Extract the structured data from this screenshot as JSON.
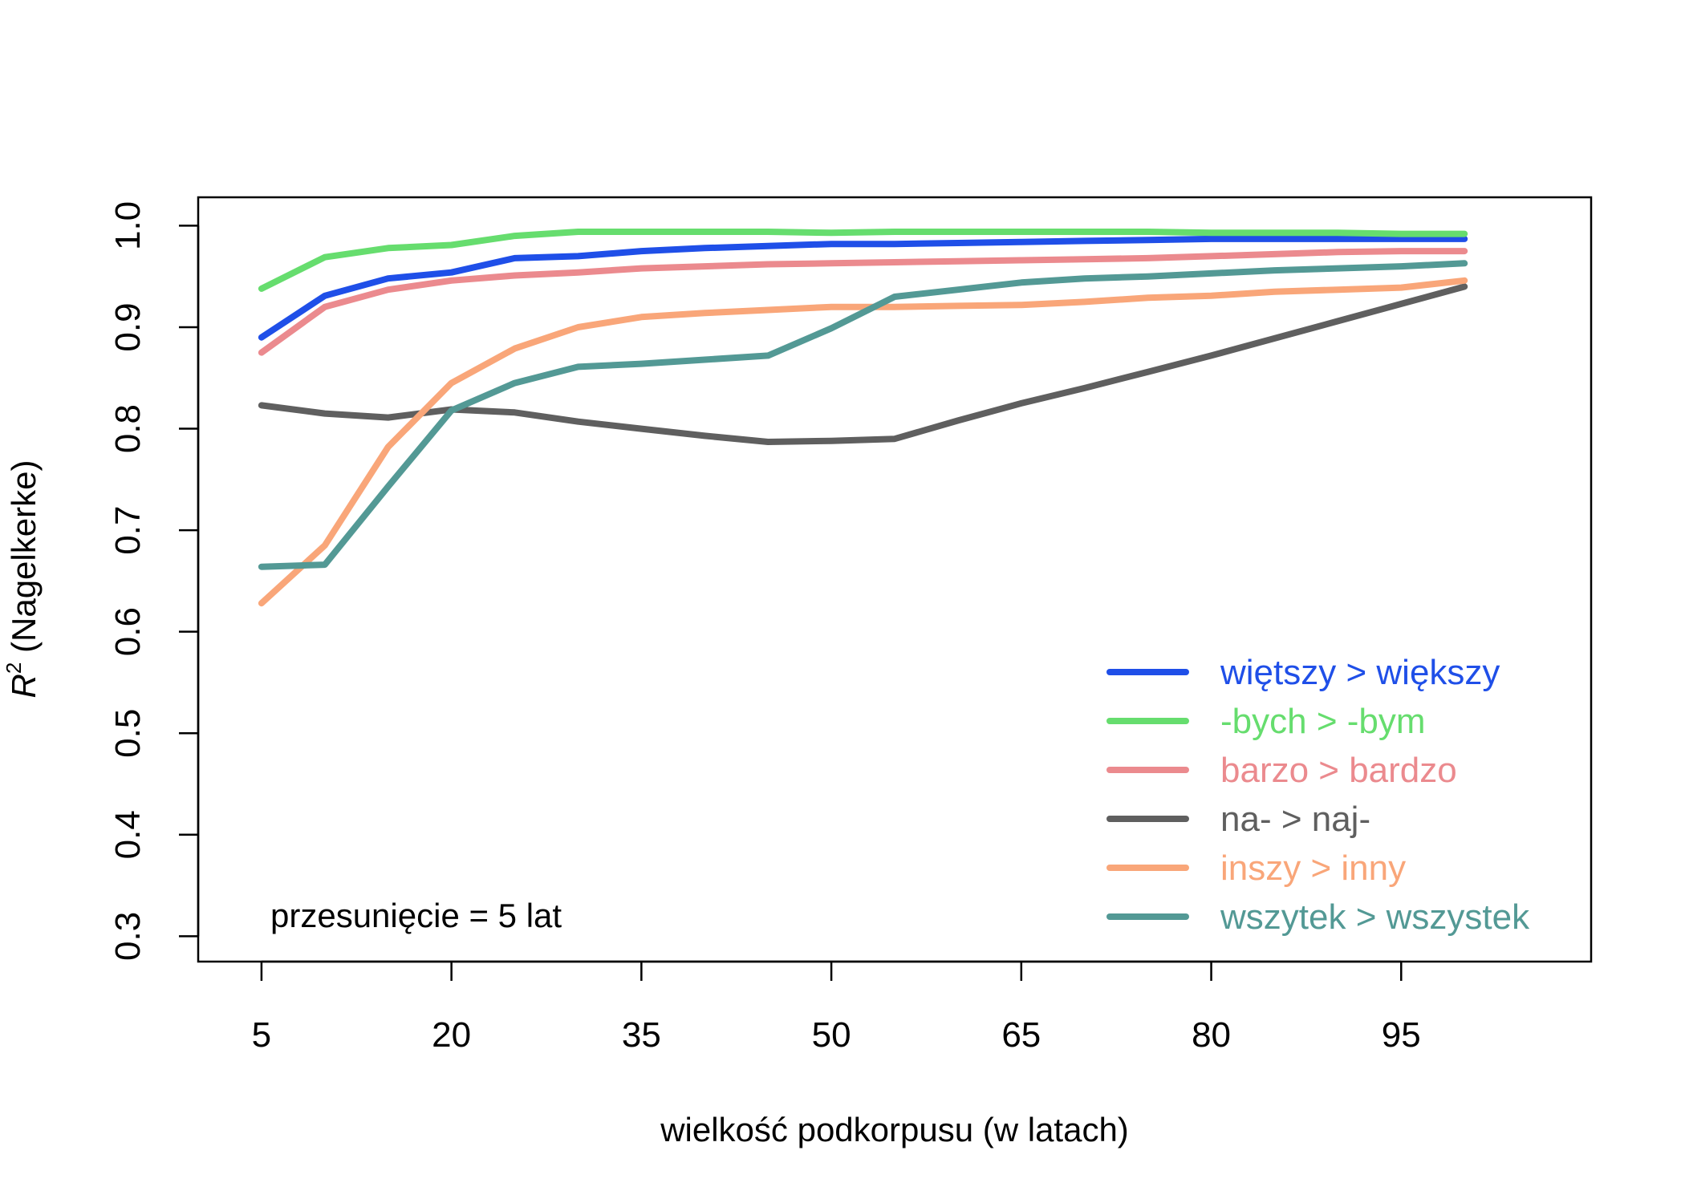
{
  "chart_data": {
    "type": "line",
    "xlabel": "wielkość podkorpusu (w latach)",
    "ylabel": {
      "main": "R",
      "sup": "2",
      "rest": " (Nagelkerke)"
    },
    "xlim": [
      0,
      110
    ],
    "ylim": [
      0.275,
      1.028
    ],
    "x_ticks": [
      5,
      20,
      35,
      50,
      65,
      80,
      95
    ],
    "x_tick_labels": [
      "5",
      "20",
      "35",
      "50",
      "65",
      "80",
      "95"
    ],
    "y_ticks": [
      0.3,
      0.4,
      0.5,
      0.6,
      0.7,
      0.8,
      0.9,
      1.0
    ],
    "y_tick_labels": [
      "0.3",
      "0.4",
      "0.5",
      "0.6",
      "0.7",
      "0.8",
      "0.9",
      "1.0"
    ],
    "grid": false,
    "legend_position": "bottom-right",
    "annotation": "przesunięcie = 5 lat",
    "x": [
      5,
      10,
      15,
      20,
      25,
      30,
      35,
      40,
      45,
      50,
      55,
      60,
      65,
      70,
      75,
      80,
      85,
      90,
      95,
      100
    ],
    "series": [
      {
        "name": "więtszy > większy",
        "color": "#1f4fe8",
        "values": [
          0.89,
          0.931,
          0.948,
          0.954,
          0.968,
          0.97,
          0.975,
          0.978,
          0.98,
          0.982,
          0.982,
          0.983,
          0.984,
          0.985,
          0.986,
          0.987,
          0.987,
          0.987,
          0.987,
          0.987
        ]
      },
      {
        "name": "-bych > -bym",
        "color": "#66dd6e",
        "values": [
          0.938,
          0.969,
          0.978,
          0.981,
          0.99,
          0.994,
          0.994,
          0.994,
          0.994,
          0.993,
          0.994,
          0.994,
          0.994,
          0.994,
          0.994,
          0.993,
          0.993,
          0.993,
          0.992,
          0.992
        ]
      },
      {
        "name": "barzo > bardzo",
        "color": "#eb8a8e",
        "values": [
          0.875,
          0.92,
          0.937,
          0.946,
          0.951,
          0.954,
          0.958,
          0.96,
          0.962,
          0.963,
          0.964,
          0.965,
          0.966,
          0.967,
          0.968,
          0.97,
          0.972,
          0.974,
          0.975,
          0.975
        ]
      },
      {
        "name": "na- > naj-",
        "color": "#5f5f5f",
        "values": [
          0.823,
          0.815,
          0.811,
          0.819,
          0.816,
          0.807,
          0.8,
          0.793,
          0.787,
          0.788,
          0.79,
          0.808,
          0.825,
          0.84,
          0.856,
          0.872,
          0.889,
          0.906,
          0.923,
          0.94
        ]
      },
      {
        "name": "inszy > inny",
        "color": "#f9a679",
        "values": [
          0.628,
          0.685,
          0.782,
          0.845,
          0.879,
          0.9,
          0.91,
          0.914,
          0.917,
          0.92,
          0.92,
          0.921,
          0.922,
          0.925,
          0.929,
          0.931,
          0.935,
          0.937,
          0.939,
          0.946
        ]
      },
      {
        "name": "wszytek > wszystek",
        "color": "#539995",
        "values": [
          0.664,
          0.666,
          0.743,
          0.818,
          0.845,
          0.861,
          0.864,
          0.868,
          0.872,
          0.899,
          0.93,
          0.937,
          0.944,
          0.948,
          0.95,
          0.953,
          0.956,
          0.958,
          0.96,
          0.963
        ]
      }
    ]
  }
}
